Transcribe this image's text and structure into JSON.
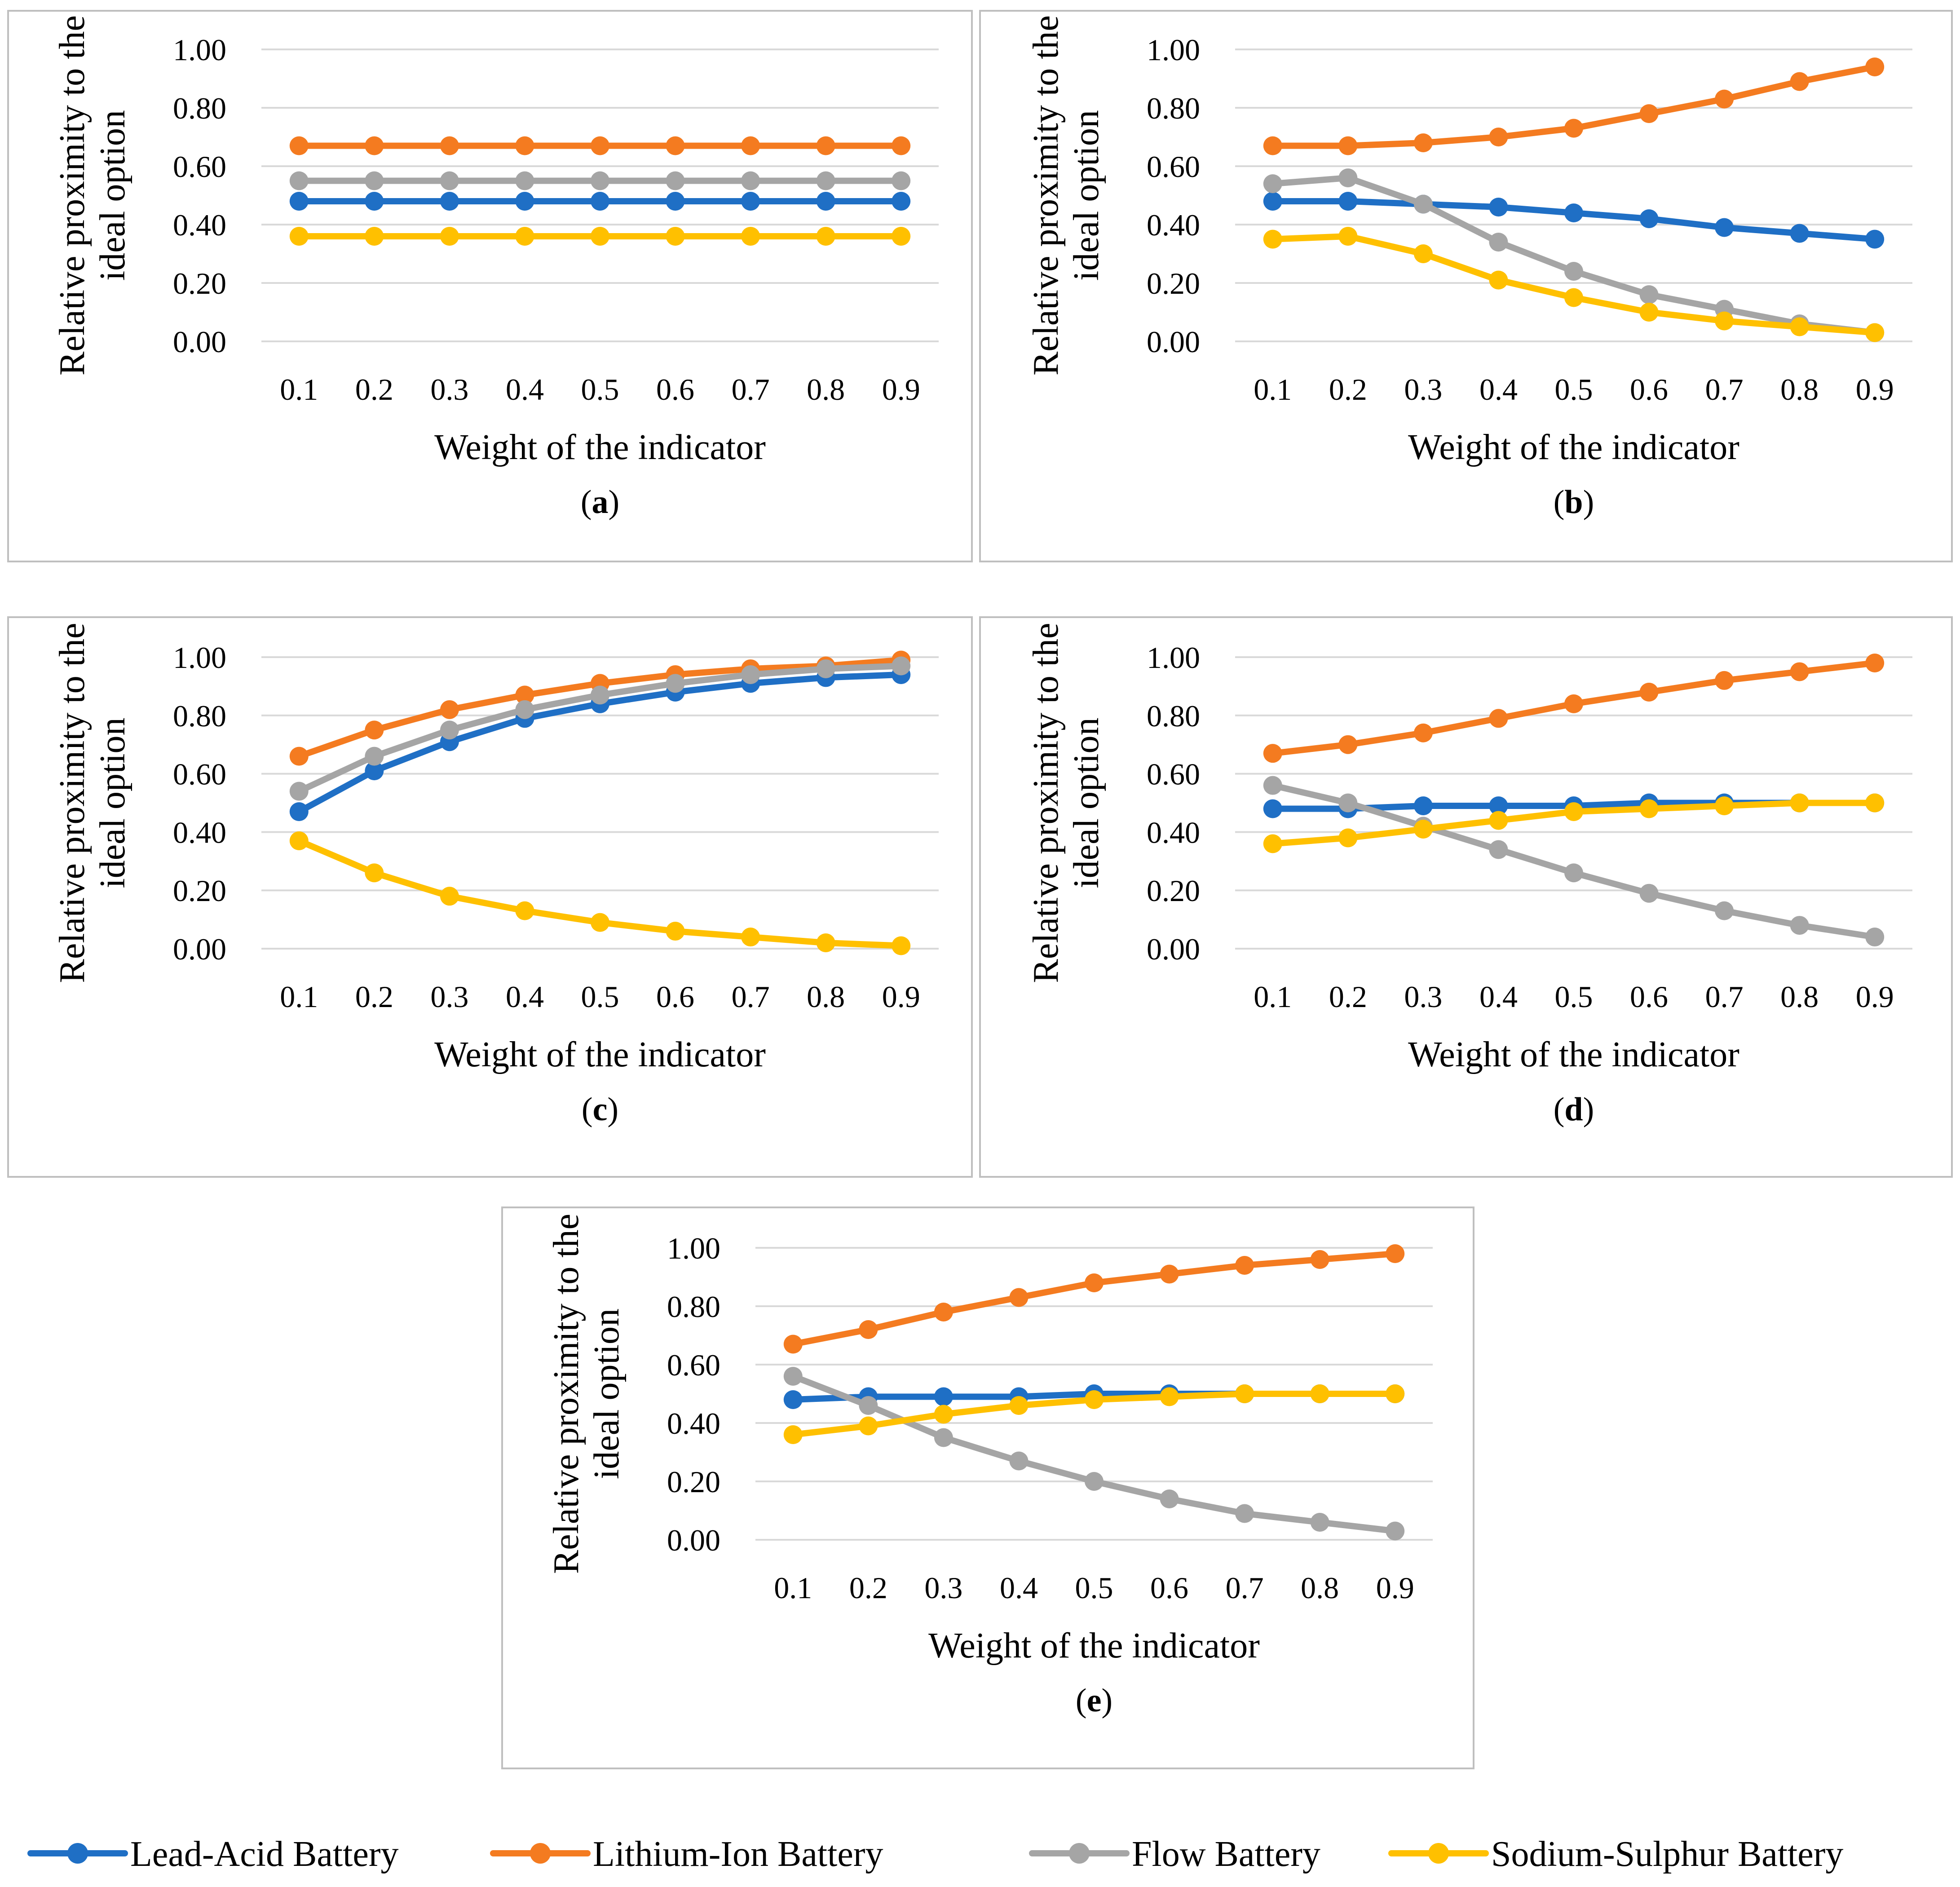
{
  "figure_title": "",
  "legend": [
    {
      "name": "Lead-Acid Battery",
      "color": "#1F6FC5"
    },
    {
      "name": "Lithium-Ion Battery",
      "color": "#F47B20"
    },
    {
      "name": "Flow Battery",
      "color": "#A5A5A5"
    },
    {
      "name": "Sodium-Sulphur Battery",
      "color": "#FFC000"
    }
  ],
  "chart_data": [
    {
      "type": "line",
      "panel_label": "a",
      "categories": [
        "0.1",
        "0.2",
        "0.3",
        "0.4",
        "0.5",
        "0.6",
        "0.7",
        "0.8",
        "0.9"
      ],
      "xlabel": "Weight of the indicator",
      "ylabel": [
        "Relative proximity to the",
        "ideal option"
      ],
      "ylim": [
        0,
        1
      ],
      "yticks": [
        "0.00",
        "0.20",
        "0.40",
        "0.60",
        "0.80",
        "1.00"
      ],
      "grid": true,
      "series": [
        {
          "name": "Lead-Acid Battery",
          "values": [
            0.48,
            0.48,
            0.48,
            0.48,
            0.48,
            0.48,
            0.48,
            0.48,
            0.48
          ]
        },
        {
          "name": "Lithium-Ion Battery",
          "values": [
            0.67,
            0.67,
            0.67,
            0.67,
            0.67,
            0.67,
            0.67,
            0.67,
            0.67
          ]
        },
        {
          "name": "Flow Battery",
          "values": [
            0.55,
            0.55,
            0.55,
            0.55,
            0.55,
            0.55,
            0.55,
            0.55,
            0.55
          ]
        },
        {
          "name": "Sodium-Sulphur Battery",
          "values": [
            0.36,
            0.36,
            0.36,
            0.36,
            0.36,
            0.36,
            0.36,
            0.36,
            0.36
          ]
        }
      ]
    },
    {
      "type": "line",
      "panel_label": "b",
      "categories": [
        "0.1",
        "0.2",
        "0.3",
        "0.4",
        "0.5",
        "0.6",
        "0.7",
        "0.8",
        "0.9"
      ],
      "xlabel": "Weight of the indicator",
      "ylabel": [
        "Relative proximity to the",
        "ideal option"
      ],
      "ylim": [
        0,
        1
      ],
      "yticks": [
        "0.00",
        "0.20",
        "0.40",
        "0.60",
        "0.80",
        "1.00"
      ],
      "grid": true,
      "series": [
        {
          "name": "Lead-Acid Battery",
          "values": [
            0.48,
            0.48,
            0.47,
            0.46,
            0.44,
            0.42,
            0.39,
            0.37,
            0.35
          ]
        },
        {
          "name": "Lithium-Ion Battery",
          "values": [
            0.67,
            0.67,
            0.68,
            0.7,
            0.73,
            0.78,
            0.83,
            0.89,
            0.94
          ]
        },
        {
          "name": "Flow Battery",
          "values": [
            0.54,
            0.56,
            0.47,
            0.34,
            0.24,
            0.16,
            0.11,
            0.06,
            0.03
          ]
        },
        {
          "name": "Sodium-Sulphur Battery",
          "values": [
            0.35,
            0.36,
            0.3,
            0.21,
            0.15,
            0.1,
            0.07,
            0.05,
            0.03
          ]
        }
      ]
    },
    {
      "type": "line",
      "panel_label": "c",
      "categories": [
        "0.1",
        "0.2",
        "0.3",
        "0.4",
        "0.5",
        "0.6",
        "0.7",
        "0.8",
        "0.9"
      ],
      "xlabel": "Weight of the indicator",
      "ylabel": [
        "Relative proximity to the",
        "ideal option"
      ],
      "ylim": [
        0,
        1
      ],
      "yticks": [
        "0.00",
        "0.20",
        "0.40",
        "0.60",
        "0.80",
        "1.00"
      ],
      "grid": true,
      "series": [
        {
          "name": "Lead-Acid Battery",
          "values": [
            0.47,
            0.61,
            0.71,
            0.79,
            0.84,
            0.88,
            0.91,
            0.93,
            0.94
          ]
        },
        {
          "name": "Lithium-Ion Battery",
          "values": [
            0.66,
            0.75,
            0.82,
            0.87,
            0.91,
            0.94,
            0.96,
            0.97,
            0.99
          ]
        },
        {
          "name": "Flow Battery",
          "values": [
            0.54,
            0.66,
            0.75,
            0.82,
            0.87,
            0.91,
            0.94,
            0.96,
            0.97
          ]
        },
        {
          "name": "Sodium-Sulphur Battery",
          "values": [
            0.37,
            0.26,
            0.18,
            0.13,
            0.09,
            0.06,
            0.04,
            0.02,
            0.01
          ]
        }
      ]
    },
    {
      "type": "line",
      "panel_label": "d",
      "categories": [
        "0.1",
        "0.2",
        "0.3",
        "0.4",
        "0.5",
        "0.6",
        "0.7",
        "0.8",
        "0.9"
      ],
      "xlabel": "Weight of the indicator",
      "ylabel": [
        "Relative proximity to the",
        "ideal option"
      ],
      "ylim": [
        0,
        1
      ],
      "yticks": [
        "0.00",
        "0.20",
        "0.40",
        "0.60",
        "0.80",
        "1.00"
      ],
      "grid": true,
      "series": [
        {
          "name": "Lead-Acid Battery",
          "values": [
            0.48,
            0.48,
            0.49,
            0.49,
            0.49,
            0.5,
            0.5,
            0.5,
            0.5
          ]
        },
        {
          "name": "Lithium-Ion Battery",
          "values": [
            0.67,
            0.7,
            0.74,
            0.79,
            0.84,
            0.88,
            0.92,
            0.95,
            0.98
          ]
        },
        {
          "name": "Flow Battery",
          "values": [
            0.56,
            0.5,
            0.42,
            0.34,
            0.26,
            0.19,
            0.13,
            0.08,
            0.04
          ]
        },
        {
          "name": "Sodium-Sulphur Battery",
          "values": [
            0.36,
            0.38,
            0.41,
            0.44,
            0.47,
            0.48,
            0.49,
            0.5,
            0.5
          ]
        }
      ]
    },
    {
      "type": "line",
      "panel_label": "e",
      "categories": [
        "0.1",
        "0.2",
        "0.3",
        "0.4",
        "0.5",
        "0.6",
        "0.7",
        "0.8",
        "0.9"
      ],
      "xlabel": "Weight of the indicator",
      "ylabel": [
        "Relative proximity to the",
        "ideal option"
      ],
      "ylim": [
        0,
        1
      ],
      "yticks": [
        "0.00",
        "0.20",
        "0.40",
        "0.60",
        "0.80",
        "1.00"
      ],
      "grid": true,
      "series": [
        {
          "name": "Lead-Acid Battery",
          "values": [
            0.48,
            0.49,
            0.49,
            0.49,
            0.5,
            0.5,
            0.5,
            0.5,
            0.5
          ]
        },
        {
          "name": "Lithium-Ion Battery",
          "values": [
            0.67,
            0.72,
            0.78,
            0.83,
            0.88,
            0.91,
            0.94,
            0.96,
            0.98
          ]
        },
        {
          "name": "Flow Battery",
          "values": [
            0.56,
            0.46,
            0.35,
            0.27,
            0.2,
            0.14,
            0.09,
            0.06,
            0.03
          ]
        },
        {
          "name": "Sodium-Sulphur Battery",
          "values": [
            0.36,
            0.39,
            0.43,
            0.46,
            0.48,
            0.49,
            0.5,
            0.5,
            0.5
          ]
        }
      ]
    }
  ]
}
